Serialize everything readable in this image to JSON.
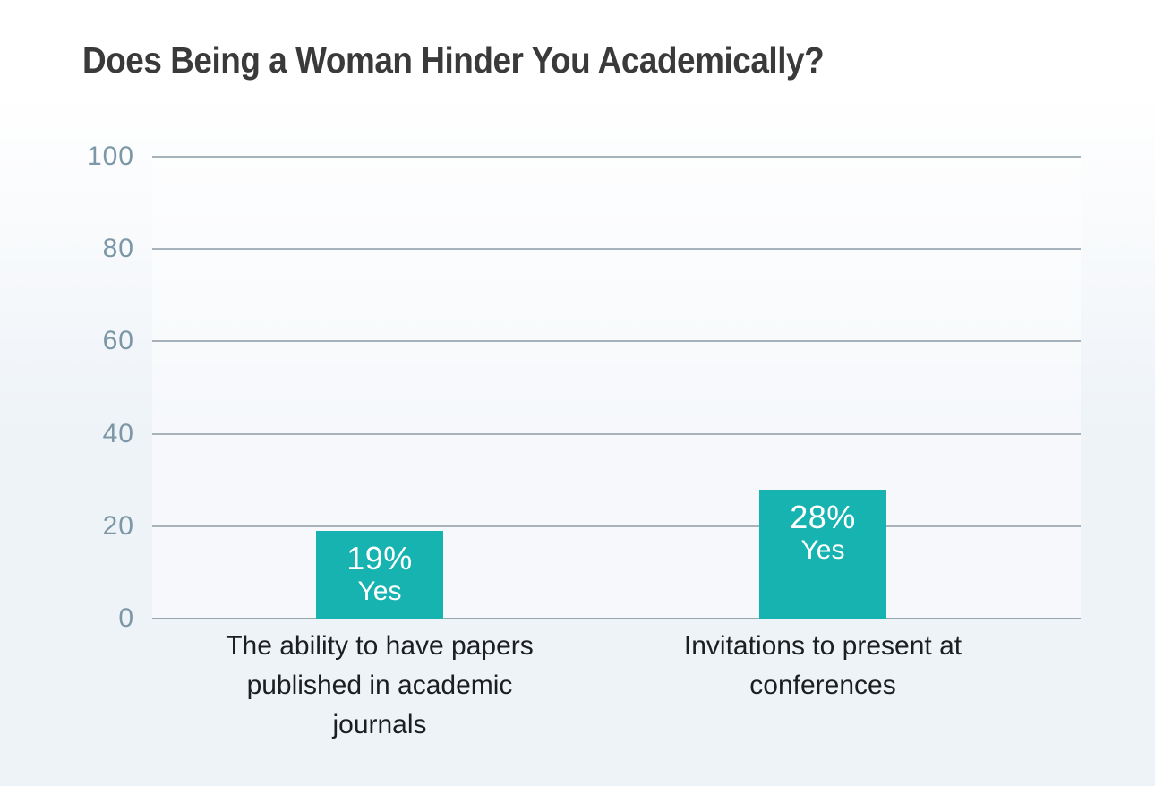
{
  "title": "Does Being a Woman Hinder You Academically?",
  "chart_data": {
    "type": "bar",
    "title": "Does Being a Woman Hinder You Academically?",
    "categories": [
      "The ability to have papers published in academic journals",
      "Invitations to present at conferences"
    ],
    "category_label_lines": [
      [
        "The ability to have papers",
        "published in academic",
        "journals"
      ],
      [
        "Invitations to present at",
        "conferences"
      ]
    ],
    "series": [
      {
        "name": "Yes",
        "values": [
          19,
          28
        ]
      }
    ],
    "bar_value_labels": [
      "19%",
      "28%"
    ],
    "bar_sub_labels": [
      "Yes",
      "Yes"
    ],
    "ylim": [
      0,
      100
    ],
    "yticks": [
      100,
      80,
      60,
      40,
      20,
      0
    ],
    "xlabel": "",
    "ylabel": "",
    "grid": true,
    "legend": false,
    "colors": {
      "bar": "#17b3b1",
      "bar_label": "#ffffff",
      "title": "#3a3a3a",
      "tick": "#7d97a6",
      "gridline": "#a7b2bb",
      "axis_line": "#97a5ae",
      "category": "#1c1e1f",
      "background_top": "#ffffff",
      "background_bottom": "#eef3f8"
    }
  }
}
